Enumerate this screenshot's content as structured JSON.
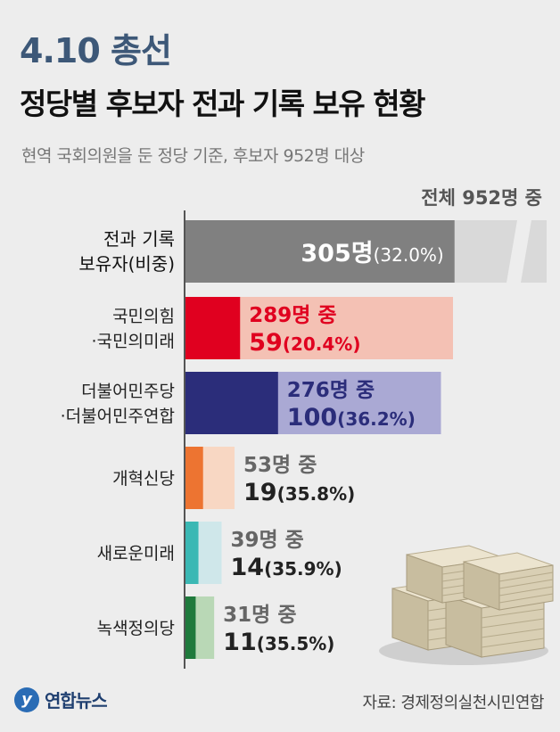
{
  "header": {
    "badge": "4.10 총선",
    "title": "정당별 후보자 전과 기록 보유 현황",
    "subtitle": "현역 국회의원을 둔 정당 기준, 후보자 952명 대상"
  },
  "total_label": "전체 952명 중",
  "footer": {
    "logo_text": "연합뉴스",
    "source": "자료: 경제정의실천시민연합"
  },
  "chart_data": {
    "type": "bar",
    "orientation": "horizontal",
    "total_candidates": 952,
    "overall": {
      "label_lines": [
        "전과 기록",
        "보유자(비중)"
      ],
      "count": 305,
      "count_text": "305명",
      "percent_text": "(32.0%)",
      "bar_color": "#808080",
      "bg_color": "#d9d9d9",
      "text_color": "#ffffff"
    },
    "parties": [
      {
        "label_lines": [
          "국민의힘",
          "·국민의미래"
        ],
        "candidates": 289,
        "with_record": 59,
        "cand_text": "289명 중",
        "count_text": "59",
        "pct_text": "(20.4%)",
        "dark": "#e0001f",
        "light": "#f4c1b4",
        "text_color": "#e0001f"
      },
      {
        "label_lines": [
          "더불어민주당",
          "·더불어민주연합"
        ],
        "candidates": 276,
        "with_record": 100,
        "cand_text": "276명 중",
        "count_text": "100",
        "pct_text": "(36.2%)",
        "dark": "#2b2d7a",
        "light": "#aaa9d4",
        "text_color": "#2b2d7a"
      },
      {
        "label_lines": [
          "개혁신당"
        ],
        "candidates": 53,
        "with_record": 19,
        "cand_text": "53명 중",
        "count_text": "19",
        "pct_text": "(35.8%)",
        "dark": "#ed7431",
        "light": "#f8d7c3",
        "text_color": "#222222"
      },
      {
        "label_lines": [
          "새로운미래"
        ],
        "candidates": 39,
        "with_record": 14,
        "cand_text": "39명 중",
        "count_text": "14",
        "pct_text": "(35.9%)",
        "dark": "#3bb8b4",
        "light": "#cfe7ea",
        "text_color": "#222222"
      },
      {
        "label_lines": [
          "녹색정의당"
        ],
        "candidates": 31,
        "with_record": 11,
        "cand_text": "31명 중",
        "count_text": "11",
        "pct_text": "(35.5%)",
        "dark": "#1f7a3c",
        "light": "#b9d8b6",
        "text_color": "#222222"
      }
    ]
  }
}
